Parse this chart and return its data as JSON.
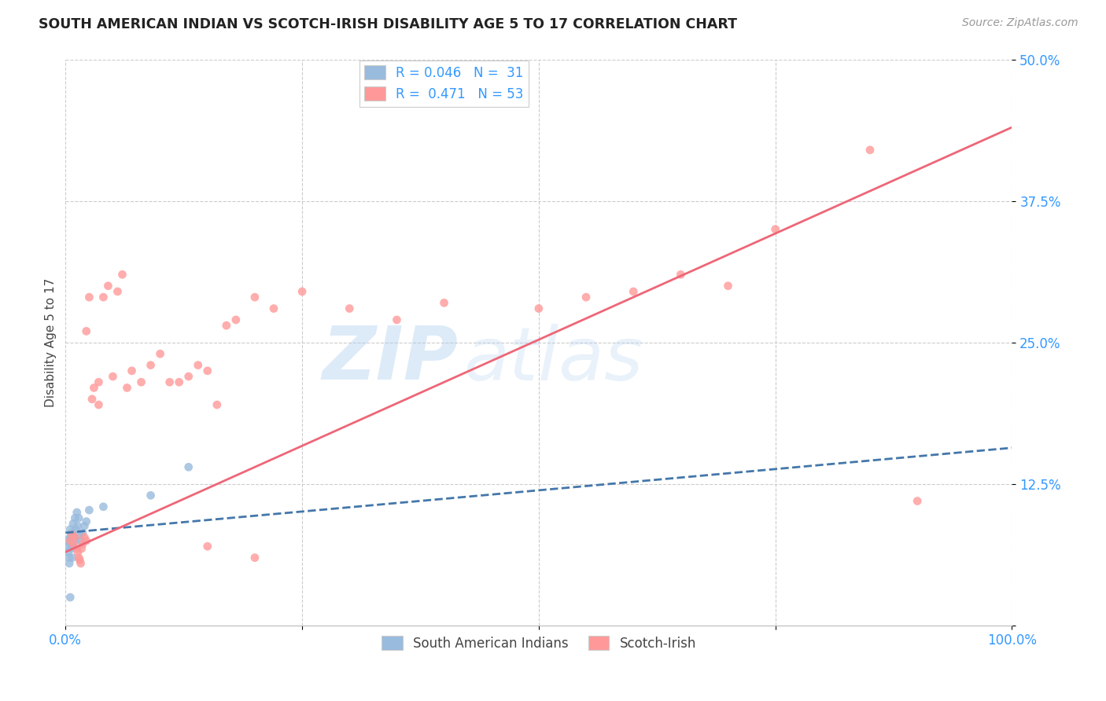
{
  "title": "SOUTH AMERICAN INDIAN VS SCOTCH-IRISH DISABILITY AGE 5 TO 17 CORRELATION CHART",
  "source": "Source: ZipAtlas.com",
  "ylabel": "Disability Age 5 to 17",
  "xlim": [
    0,
    1.0
  ],
  "ylim": [
    0,
    0.5
  ],
  "legend_r_blue": "R = 0.046",
  "legend_n_blue": "N =  31",
  "legend_r_pink": "R =  0.471",
  "legend_n_pink": "N = 53",
  "blue_color": "#99BBDD",
  "pink_color": "#FF9999",
  "blue_line_color": "#4477AA",
  "pink_line_color": "#EE6677",
  "watermark_zip": "ZIP",
  "watermark_atlas": "atlas",
  "background_color": "#FFFFFF",
  "blue_x": [
    0.002,
    0.003,
    0.003,
    0.004,
    0.004,
    0.005,
    0.005,
    0.005,
    0.006,
    0.006,
    0.006,
    0.007,
    0.007,
    0.008,
    0.008,
    0.009,
    0.01,
    0.01,
    0.011,
    0.012,
    0.013,
    0.014,
    0.015,
    0.016,
    0.018,
    0.02,
    0.022,
    0.025,
    0.04,
    0.09,
    0.13
  ],
  "blue_y": [
    0.075,
    0.07,
    0.065,
    0.06,
    0.055,
    0.085,
    0.078,
    0.025,
    0.08,
    0.072,
    0.068,
    0.082,
    0.06,
    0.09,
    0.07,
    0.078,
    0.095,
    0.075,
    0.085,
    0.1,
    0.088,
    0.095,
    0.08,
    0.075,
    0.082,
    0.088,
    0.092,
    0.102,
    0.105,
    0.115,
    0.14
  ],
  "pink_x": [
    0.005,
    0.007,
    0.008,
    0.01,
    0.012,
    0.013,
    0.014,
    0.015,
    0.016,
    0.017,
    0.018,
    0.02,
    0.022,
    0.022,
    0.025,
    0.028,
    0.03,
    0.035,
    0.035,
    0.04,
    0.045,
    0.05,
    0.055,
    0.06,
    0.065,
    0.07,
    0.08,
    0.09,
    0.1,
    0.11,
    0.12,
    0.13,
    0.14,
    0.15,
    0.16,
    0.17,
    0.18,
    0.2,
    0.22,
    0.25,
    0.3,
    0.35,
    0.4,
    0.5,
    0.55,
    0.6,
    0.65,
    0.7,
    0.75,
    0.85,
    0.9,
    0.15,
    0.2
  ],
  "pink_y": [
    0.075,
    0.08,
    0.072,
    0.078,
    0.068,
    0.065,
    0.06,
    0.058,
    0.055,
    0.068,
    0.072,
    0.078,
    0.075,
    0.26,
    0.29,
    0.2,
    0.21,
    0.215,
    0.195,
    0.29,
    0.3,
    0.22,
    0.295,
    0.31,
    0.21,
    0.225,
    0.215,
    0.23,
    0.24,
    0.215,
    0.215,
    0.22,
    0.23,
    0.225,
    0.195,
    0.265,
    0.27,
    0.29,
    0.28,
    0.295,
    0.28,
    0.27,
    0.285,
    0.28,
    0.29,
    0.295,
    0.31,
    0.3,
    0.35,
    0.42,
    0.11,
    0.07,
    0.06
  ],
  "ytick_vals": [
    0.0,
    0.125,
    0.25,
    0.375,
    0.5
  ],
  "ytick_labels": [
    "",
    "12.5%",
    "25.0%",
    "37.5%",
    "50.0%"
  ],
  "xtick_vals": [
    0.0,
    0.25,
    0.5,
    0.75,
    1.0
  ],
  "xtick_labels": [
    "0.0%",
    "",
    "",
    "",
    "100.0%"
  ]
}
